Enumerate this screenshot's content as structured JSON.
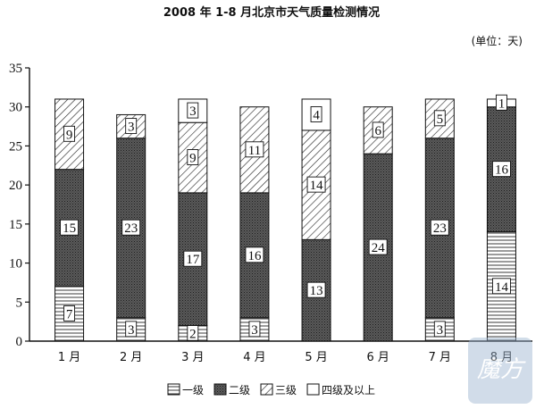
{
  "chart_data": {
    "type": "bar",
    "stacked": true,
    "title": "2008 年 1-8 月北京市天气质量检测情况",
    "unit_label": "(单位：天)",
    "xlabel": "",
    "ylabel": "",
    "ylim": [
      0,
      35
    ],
    "yticks": [
      "0",
      "5",
      "10",
      "15",
      "20",
      "25",
      "30",
      "35"
    ],
    "categories": [
      "1 月",
      "2 月",
      "3 月",
      "4 月",
      "5 月",
      "6 月",
      "7 月",
      "8 月"
    ],
    "series": [
      {
        "name": "一级",
        "pattern": "horizontal-lines",
        "values": [
          7,
          3,
          2,
          3,
          0,
          0,
          3,
          14
        ]
      },
      {
        "name": "二级",
        "pattern": "dark-dense",
        "values": [
          15,
          23,
          17,
          16,
          13,
          24,
          23,
          16
        ]
      },
      {
        "name": "三级",
        "pattern": "diagonal-lines",
        "values": [
          9,
          3,
          9,
          11,
          14,
          6,
          5,
          0
        ]
      },
      {
        "name": "四级及以上",
        "pattern": "blank",
        "values": [
          0,
          0,
          3,
          0,
          4,
          0,
          0,
          1
        ]
      }
    ],
    "legend_position": "bottom"
  },
  "watermark": {
    "text": "魔方"
  }
}
